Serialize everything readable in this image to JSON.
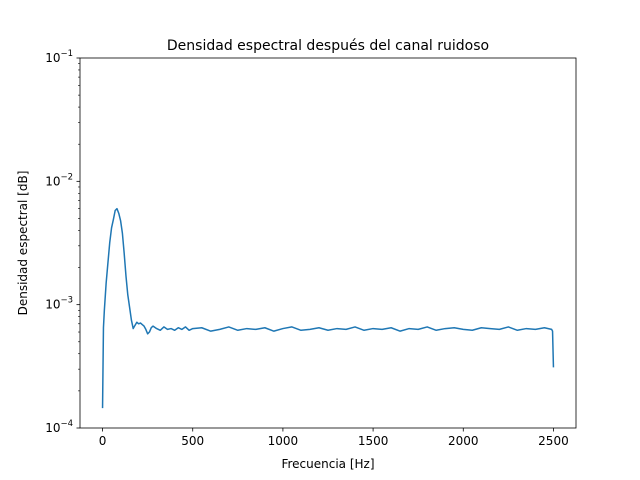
{
  "chart_data": {
    "type": "line",
    "title": "Densidad espectral después del canal ruidoso",
    "xlabel": "Frecuencia [Hz]",
    "ylabel": "Densidad espectral [dB]",
    "xlim": [
      -125,
      2625
    ],
    "ylim": [
      0.0001,
      0.1
    ],
    "y_scale": "log",
    "grid": false,
    "x_ticks": [
      0,
      500,
      1000,
      1500,
      2000,
      2500
    ],
    "x_tick_labels": [
      "0",
      "500",
      "1000",
      "1500",
      "2000",
      "2500"
    ],
    "y_ticks": [
      0.0001,
      0.001,
      0.01,
      0.1
    ],
    "y_tick_labels": [
      {
        "base": "10",
        "exp": "−4"
      },
      {
        "base": "10",
        "exp": "−3"
      },
      {
        "base": "10",
        "exp": "−2"
      },
      {
        "base": "10",
        "exp": "−1"
      }
    ],
    "series": [
      {
        "color": "#1f77b4",
        "x": [
          0,
          5,
          10,
          20,
          30,
          40,
          50,
          60,
          70,
          80,
          90,
          100,
          110,
          120,
          130,
          140,
          150,
          160,
          170,
          180,
          190,
          200,
          210,
          220,
          230,
          240,
          250,
          260,
          270,
          280,
          300,
          320,
          340,
          360,
          380,
          400,
          420,
          440,
          460,
          480,
          500,
          550,
          600,
          650,
          700,
          750,
          800,
          850,
          900,
          950,
          1000,
          1050,
          1100,
          1150,
          1200,
          1250,
          1300,
          1350,
          1400,
          1450,
          1500,
          1550,
          1600,
          1650,
          1700,
          1750,
          1800,
          1850,
          1900,
          1950,
          2000,
          2050,
          2100,
          2150,
          2200,
          2250,
          2300,
          2350,
          2400,
          2450,
          2490,
          2495,
          2500
        ],
        "y": [
          0.000145,
          0.00065,
          0.0009,
          0.0015,
          0.0022,
          0.0032,
          0.0042,
          0.0049,
          0.0058,
          0.006,
          0.0055,
          0.0048,
          0.0038,
          0.0026,
          0.0017,
          0.0012,
          0.00095,
          0.00075,
          0.00064,
          0.00068,
          0.00072,
          0.0007,
          0.00071,
          0.00069,
          0.00067,
          0.00063,
          0.00058,
          0.0006,
          0.00065,
          0.00067,
          0.00064,
          0.00062,
          0.00066,
          0.00063,
          0.00064,
          0.00062,
          0.00065,
          0.00063,
          0.00066,
          0.00062,
          0.00064,
          0.00065,
          0.00061,
          0.00063,
          0.00066,
          0.00062,
          0.00064,
          0.00063,
          0.00065,
          0.00061,
          0.00064,
          0.00066,
          0.00062,
          0.00063,
          0.00065,
          0.00062,
          0.00064,
          0.00063,
          0.00066,
          0.00062,
          0.00064,
          0.00063,
          0.00065,
          0.00061,
          0.00064,
          0.00063,
          0.00066,
          0.00062,
          0.00064,
          0.00065,
          0.00063,
          0.00062,
          0.00065,
          0.00064,
          0.00063,
          0.00066,
          0.00062,
          0.00064,
          0.00063,
          0.00065,
          0.00063,
          0.00061,
          0.00031
        ]
      }
    ]
  }
}
